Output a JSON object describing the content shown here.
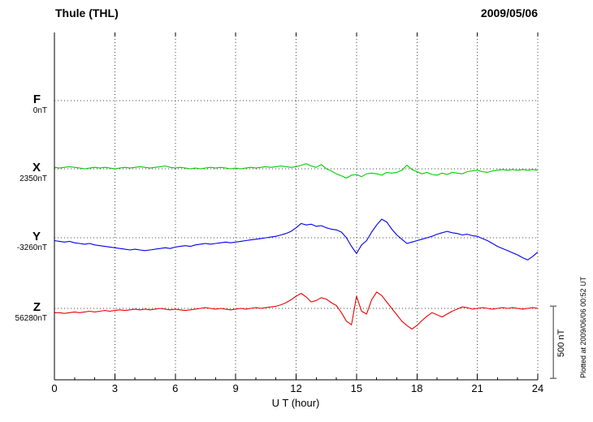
{
  "header": {
    "title": "Thule (THL)",
    "date": "2009/05/06"
  },
  "x_axis": {
    "label": "U T (hour)",
    "min": 0,
    "max": 24,
    "major_ticks": [
      0,
      3,
      6,
      9,
      12,
      15,
      18,
      21,
      24
    ],
    "tick_labels": [
      "0",
      "3",
      "6",
      "9",
      "12",
      "15",
      "18",
      "21",
      "24"
    ]
  },
  "scale_bar": {
    "label": "500 nT",
    "span_nT": 500
  },
  "footnote": {
    "text": "Plotted at 2009/06/06 00:52 UT"
  },
  "chart_data": {
    "type": "line",
    "title": "Thule (THL)",
    "date": "2009/05/06",
    "xlabel": "U T (hour)",
    "x_range_hours": [
      0,
      24
    ],
    "x_step_hours": 0.25,
    "grid": "dotted vertical lines every 3 h; dotted horizontal baseline for each component",
    "legend_position": "left",
    "series": [
      {
        "name": "F",
        "baseline_label": "0nT",
        "baseline_nT": 0,
        "color": "#ffa500",
        "offsets_nT": []
      },
      {
        "name": "X",
        "baseline_label": "2350nT",
        "baseline_nT": 2350,
        "color": "#00cc00",
        "offsets_nT": [
          10,
          5,
          10,
          15,
          10,
          5,
          0,
          5,
          10,
          5,
          10,
          5,
          0,
          5,
          10,
          5,
          10,
          15,
          10,
          5,
          10,
          15,
          20,
          10,
          5,
          10,
          5,
          0,
          5,
          0,
          5,
          10,
          5,
          10,
          5,
          0,
          5,
          0,
          5,
          10,
          5,
          10,
          15,
          10,
          15,
          20,
          15,
          10,
          15,
          25,
          35,
          20,
          10,
          30,
          0,
          -15,
          -35,
          -50,
          -65,
          -45,
          -40,
          -55,
          -35,
          -30,
          -35,
          -45,
          -25,
          -30,
          -25,
          -10,
          25,
          -5,
          -20,
          -35,
          -25,
          -40,
          -45,
          -30,
          -40,
          -25,
          -30,
          -35,
          -20,
          -15,
          -10,
          -20,
          -25,
          -15,
          -10,
          -5,
          -10,
          -5,
          -10,
          -5,
          -10,
          -5,
          -10
        ]
      },
      {
        "name": "Y",
        "baseline_label": "-3260nT",
        "baseline_nT": -3260,
        "color": "#0000ee",
        "offsets_nT": [
          -20,
          -25,
          -30,
          -25,
          -35,
          -40,
          -45,
          -40,
          -50,
          -55,
          -60,
          -65,
          -70,
          -75,
          -80,
          -85,
          -80,
          -85,
          -90,
          -85,
          -80,
          -75,
          -70,
          -75,
          -65,
          -60,
          -55,
          -60,
          -50,
          -45,
          -40,
          -45,
          -40,
          -35,
          -30,
          -35,
          -30,
          -25,
          -20,
          -15,
          -10,
          -5,
          0,
          5,
          10,
          20,
          30,
          45,
          70,
          100,
          90,
          95,
          80,
          85,
          70,
          60,
          55,
          40,
          0,
          -60,
          -110,
          -50,
          -20,
          40,
          90,
          130,
          110,
          60,
          20,
          -10,
          -40,
          -30,
          -20,
          -10,
          0,
          10,
          25,
          35,
          45,
          35,
          30,
          20,
          25,
          15,
          10,
          -5,
          -20,
          -40,
          -60,
          -75,
          -90,
          -105,
          -120,
          -140,
          -155,
          -130,
          -100
        ]
      },
      {
        "name": "Z",
        "baseline_label": "56280nT",
        "baseline_nT": 56280,
        "color": "#ee0000",
        "offsets_nT": [
          -30,
          -30,
          -35,
          -30,
          -25,
          -30,
          -25,
          -20,
          -25,
          -20,
          -15,
          -20,
          -15,
          -10,
          -15,
          -10,
          -5,
          -10,
          -5,
          -10,
          -5,
          0,
          -5,
          -10,
          -5,
          -10,
          -15,
          -10,
          -5,
          0,
          5,
          0,
          -5,
          0,
          -5,
          -10,
          -5,
          0,
          -5,
          0,
          5,
          0,
          5,
          10,
          15,
          25,
          40,
          60,
          85,
          105,
          80,
          45,
          55,
          75,
          65,
          40,
          20,
          -30,
          -90,
          -115,
          85,
          -20,
          -40,
          60,
          115,
          90,
          45,
          0,
          -45,
          -90,
          -120,
          -145,
          -120,
          -85,
          -55,
          -30,
          -45,
          -60,
          -40,
          -20,
          -5,
          10,
          5,
          -5,
          0,
          5,
          0,
          -5,
          0,
          5,
          0,
          5,
          0,
          -5,
          0,
          5,
          0
        ]
      }
    ]
  }
}
